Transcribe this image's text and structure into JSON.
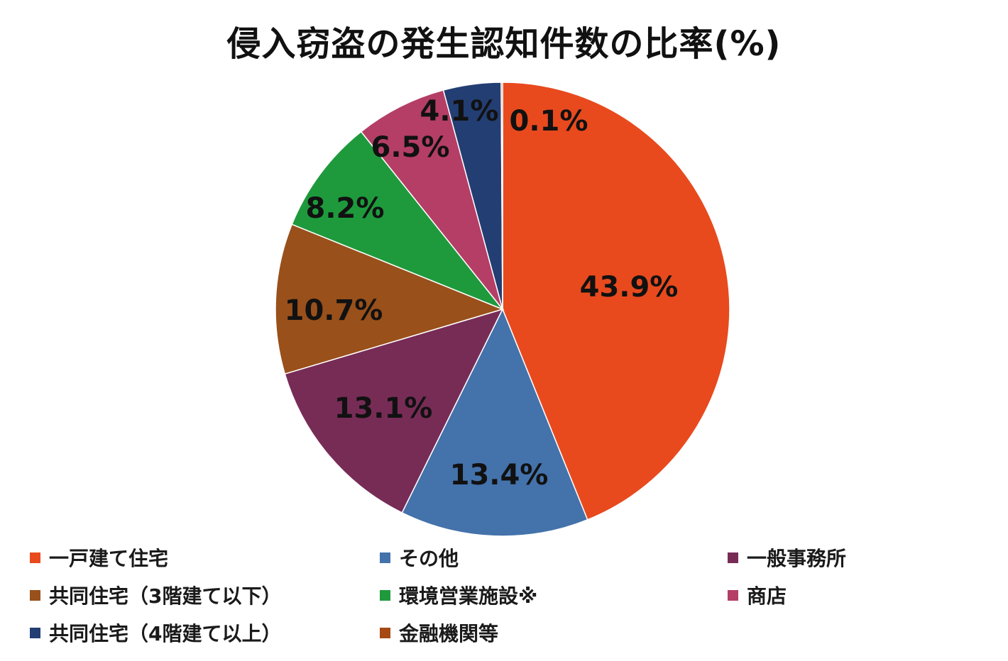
{
  "chart_data": {
    "type": "pie",
    "title": "侵入窃盗の発生認知件数の比率(%)",
    "slices": [
      {
        "name": "一戸建て住宅",
        "value": 43.9,
        "label": "43.9%",
        "color": "#E84A1E"
      },
      {
        "name": "その他",
        "value": 13.4,
        "label": "13.4%",
        "color": "#4472AB"
      },
      {
        "name": "一般事務所",
        "value": 13.1,
        "label": "13.1%",
        "color": "#772C56"
      },
      {
        "name": "共同住宅（3階建て以下）",
        "value": 10.7,
        "label": "10.7%",
        "color": "#99501B"
      },
      {
        "name": "環境営業施設※",
        "value": 8.2,
        "label": "8.2%",
        "color": "#1E9A3C"
      },
      {
        "name": "商店",
        "value": 6.5,
        "label": "6.5%",
        "color": "#B43E66"
      },
      {
        "name": "共同住宅（4階建て以上）",
        "value": 4.1,
        "label": "4.1%",
        "color": "#233E73"
      },
      {
        "name": "金融機関等",
        "value": 0.1,
        "label": "0.1%",
        "color": "#A44A12"
      }
    ],
    "legend_placement": "bottom"
  }
}
